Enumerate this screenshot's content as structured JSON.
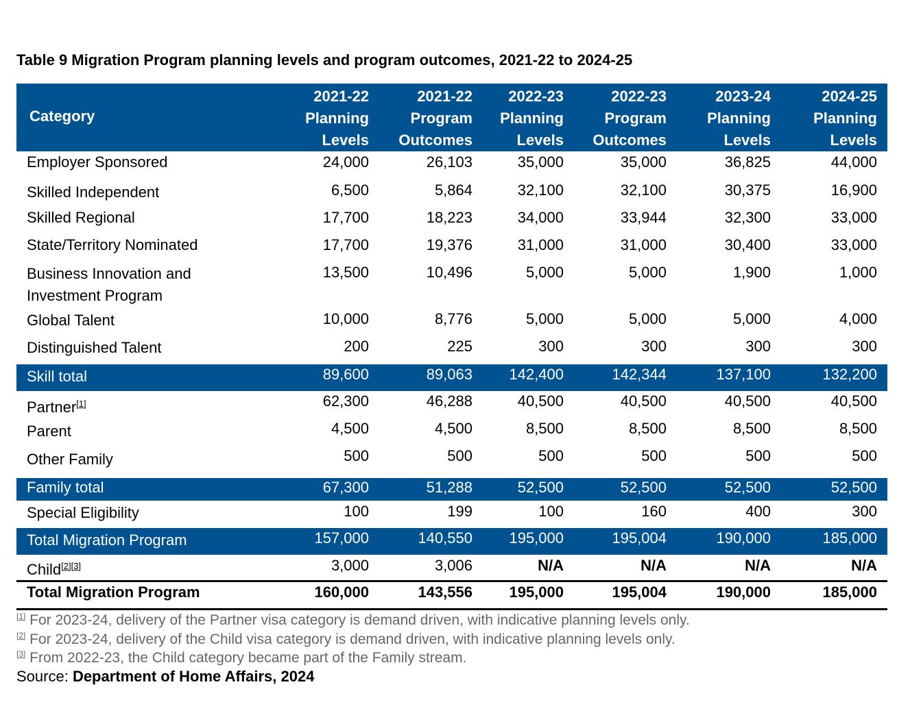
{
  "title": "Table 9 Migration Program planning levels and program outcomes, 2021-22 to 2024-25",
  "colors": {
    "header": "#005291",
    "footnote": "#666666"
  },
  "columns": {
    "category": "Category",
    "years": [
      [
        "2021-22",
        "Planning",
        "Levels"
      ],
      [
        "2021-22",
        "Program",
        "Outcomes"
      ],
      [
        "2022-23",
        "Planning",
        "Levels"
      ],
      [
        "2022-23",
        "Program",
        "Outcomes"
      ],
      [
        "2023-24",
        "Planning",
        "Levels"
      ],
      [
        "2024-25",
        "Planning",
        "Levels"
      ]
    ]
  },
  "rows": [
    {
      "label": "Employer Sponsored",
      "values": [
        "24,000",
        "26,103",
        "35,000",
        "35,000",
        "36,825",
        "44,000"
      ]
    },
    {
      "label": "Skilled Independent",
      "values": [
        "6,500",
        "5,864",
        "32,100",
        "32,100",
        "30,375",
        "16,900"
      ]
    },
    {
      "label": "Skilled Regional",
      "values": [
        "17,700",
        "18,223",
        "34,000",
        "33,944",
        "32,300",
        "33,000"
      ]
    },
    {
      "label": "State/Territory Nominated",
      "values": [
        "17,700",
        "19,376",
        "31,000",
        "31,000",
        "30,400",
        "33,000"
      ]
    },
    {
      "label": "Business Innovation and",
      "label2": "Investment Program",
      "values": [
        "13,500",
        "10,496",
        "5,000",
        "5,000",
        "1,900",
        "1,000"
      ]
    },
    {
      "label": "Global Talent",
      "values": [
        "10,000",
        "8,776",
        "5,000",
        "5,000",
        "5,000",
        "4,000"
      ]
    },
    {
      "label": "Distinguished Talent",
      "values": [
        "200",
        "225",
        "300",
        "300",
        "300",
        "300"
      ]
    },
    {
      "label": "Skill total",
      "type": "band",
      "values": [
        "89,600",
        "89,063",
        "142,400",
        "142,344",
        "137,100",
        "132,200"
      ]
    },
    {
      "label": "Partner",
      "sup": "[1]",
      "values": [
        "62,300",
        "46,288",
        "40,500",
        "40,500",
        "40,500",
        "40,500"
      ]
    },
    {
      "label": "Parent",
      "values": [
        "4,500",
        "4,500",
        "8,500",
        "8,500",
        "8,500",
        "8,500"
      ]
    },
    {
      "label": "Other Family",
      "values": [
        "500",
        "500",
        "500",
        "500",
        "500",
        "500"
      ]
    },
    {
      "label": "Family total",
      "type": "band",
      "values": [
        "67,300",
        "51,288",
        "52,500",
        "52,500",
        "52,500",
        "52,500"
      ]
    },
    {
      "label": "Special Eligibility",
      "values": [
        "100",
        "199",
        "100",
        "160",
        "400",
        "300"
      ]
    },
    {
      "label": "Total Migration Program",
      "type": "band",
      "values": [
        "157,000",
        "140,550",
        "195,000",
        "195,004",
        "190,000",
        "185,000"
      ]
    },
    {
      "label": "Child",
      "sup": "[2][3]",
      "values": [
        "3,000",
        "3,006",
        "N/A",
        "N/A",
        "N/A",
        "N/A"
      ],
      "boldFrom": 2
    },
    {
      "label": "Total Migration Program",
      "type": "bold",
      "values": [
        "160,000",
        "143,556",
        "195,000",
        "195,004",
        "190,000",
        "185,000"
      ]
    }
  ],
  "footnotes": [
    {
      "mark": "[1]",
      "text": " For 2023-24, delivery of the Partner visa category is demand driven, with indicative planning levels only."
    },
    {
      "mark": "[2]",
      "text": " For 2023-24, delivery of the Child visa category is demand driven, with indicative planning levels only."
    },
    {
      "mark": "[3]",
      "text": " From 2022-23, the Child category became part of the Family stream."
    }
  ],
  "source": {
    "label": "Source: ",
    "value": "Department of Home Affairs, 2024"
  }
}
